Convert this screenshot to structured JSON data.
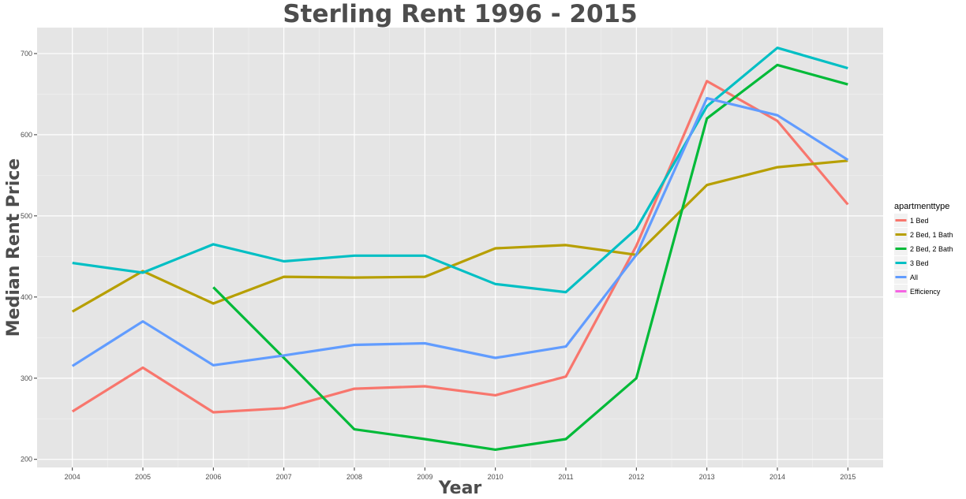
{
  "chart_data": {
    "type": "line",
    "title": "Sterling Rent 1996 - 2015",
    "xlabel": "Year",
    "ylabel": "Median Rent Price",
    "x": [
      2004,
      2005,
      2006,
      2007,
      2008,
      2009,
      2010,
      2011,
      2012,
      2013,
      2014,
      2015
    ],
    "xlim": [
      2003.5,
      2015.5
    ],
    "ylim": [
      190,
      732
    ],
    "yticks": [
      200,
      300,
      400,
      500,
      600,
      700
    ],
    "grid": true,
    "legend": {
      "title": "apartmenttype",
      "position": "right"
    },
    "series": [
      {
        "name": "1 Bed",
        "color": "#f8766d",
        "values": [
          259,
          313,
          258,
          263,
          287,
          290,
          279,
          302,
          463,
          666,
          617,
          514
        ]
      },
      {
        "name": "2 Bed, 1 Bath",
        "color": "#b79f00",
        "values": [
          382,
          432,
          392,
          425,
          424,
          425,
          460,
          464,
          452,
          538,
          560,
          568
        ]
      },
      {
        "name": "2 Bed, 2 Bath",
        "color": "#00ba38",
        "values": [
          null,
          null,
          412,
          325,
          237,
          225,
          212,
          225,
          300,
          620,
          686,
          662
        ]
      },
      {
        "name": "3 Bed",
        "color": "#00bfc4",
        "values": [
          442,
          430,
          465,
          444,
          451,
          451,
          416,
          406,
          484,
          635,
          707,
          682
        ]
      },
      {
        "name": "All",
        "color": "#619cff",
        "values": [
          315,
          370,
          316,
          328,
          341,
          343,
          325,
          339,
          452,
          645,
          624,
          569
        ]
      },
      {
        "name": "Efficiency",
        "color": "#f564e3",
        "values": [
          null,
          null,
          null,
          null,
          null,
          null,
          null,
          null,
          null,
          null,
          null,
          null
        ]
      }
    ]
  }
}
